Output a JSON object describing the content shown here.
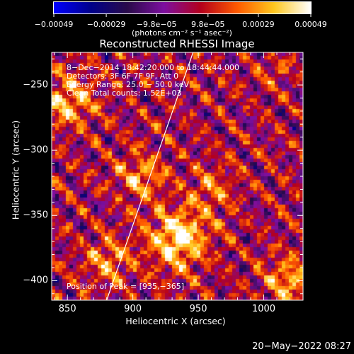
{
  "colorbar": {
    "ticks": [
      {
        "value": -0.00049,
        "label": "−0.00049"
      },
      {
        "value": -0.00029,
        "label": "−0.00029"
      },
      {
        "value": -9.8e-05,
        "label": "−9.8e−05"
      },
      {
        "value": 9.8e-05,
        "label": "9.8e−05"
      },
      {
        "value": 0.00029,
        "label": "0.00029"
      },
      {
        "value": 0.00049,
        "label": "0.00049"
      }
    ],
    "range": [
      -0.00049,
      0.00049
    ],
    "units_text": "(photons cm⁻² s⁻¹ asec⁻²)",
    "colors": [
      "#0000ff",
      "#00008b",
      "#2a0b4a",
      "#7d0fa0",
      "#b4001c",
      "#ff5a00",
      "#ffc81e",
      "#ffffff"
    ]
  },
  "chart_data": {
    "type": "heatmap",
    "title": "Reconstructed RHESSI Image",
    "xlabel": "Heliocentric X (arcsec)",
    "ylabel": "Heliocentric Y (arcsec)",
    "xlim": [
      838,
      1030
    ],
    "ylim": [
      -415,
      -225
    ],
    "x_ticks": [
      {
        "value": 850,
        "label": "850"
      },
      {
        "value": 900,
        "label": "900"
      },
      {
        "value": 950,
        "label": "950"
      },
      {
        "value": 1000,
        "label": "1000"
      }
    ],
    "y_ticks": [
      {
        "value": -250,
        "label": "−250"
      },
      {
        "value": -300,
        "label": "−300"
      },
      {
        "value": -350,
        "label": "−350"
      },
      {
        "value": -400,
        "label": "−400"
      }
    ],
    "annotations": [
      "8−Dec−2014 18:42:20.000 to 18:44:44.000",
      "Detectors: 3F 6F 7F 9F, Att 0",
      "Energy Range: 25.0 − 50.0 keV",
      "Clean     Total counts: 1.52E+03"
    ],
    "peak_label": "Position of Peak = [935,−365]",
    "peak": [
      935,
      -365
    ],
    "hot_regions": [
      {
        "x": 935,
        "y": -368,
        "amp": 1.0,
        "sigma": 16
      },
      {
        "x": 905,
        "y": -320,
        "amp": 0.55,
        "sigma": 13
      },
      {
        "x": 850,
        "y": -262,
        "amp": 0.75,
        "sigma": 14
      },
      {
        "x": 1020,
        "y": -400,
        "amp": 0.7,
        "sigma": 13
      },
      {
        "x": 880,
        "y": -385,
        "amp": 0.6,
        "sigma": 12
      },
      {
        "x": 960,
        "y": -330,
        "amp": 0.45,
        "sigma": 12
      },
      {
        "x": 1010,
        "y": -240,
        "amp": 0.35,
        "sigma": 8
      }
    ],
    "limb_line": {
      "x": [
        880,
        946
      ],
      "y": [
        -415,
        -225
      ]
    }
  },
  "footer": {
    "timestamp": "20−May−2022 08:27"
  }
}
